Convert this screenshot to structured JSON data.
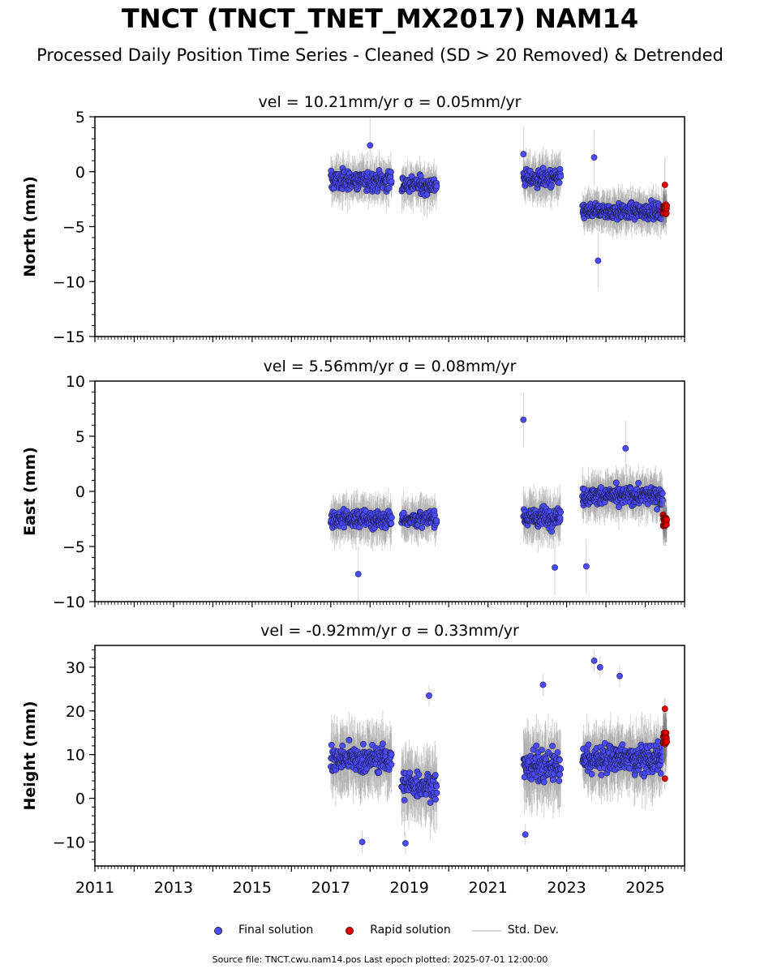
{
  "header": {
    "title": "TNCT (TNCT_TNET_MX2017) NAM14",
    "subtitle": "Processed Daily Position Time Series - Cleaned (SD > 20 Removed) & Detrended"
  },
  "legend": {
    "items": [
      {
        "label": "Final solution",
        "color": "#4b4bff",
        "kind": "dot"
      },
      {
        "label": "Rapid solution",
        "color": "#e00000",
        "kind": "dot"
      },
      {
        "label": "Std. Dev.",
        "color": "#d3d3d3",
        "kind": "line"
      }
    ]
  },
  "footer": {
    "source": "Source file: TNCT.cwu.nam14.pos  Last epoch plotted: 2025-07-01 12:00:00"
  },
  "colors": {
    "final": "#4b4bff",
    "rapid": "#e00000",
    "stddev": "#d3d3d3"
  },
  "chart_data": [
    {
      "type": "scatter",
      "title": "vel = 10.21mm/yr   σ = 0.05mm/yr",
      "ylabel": "North (mm)",
      "xlim": [
        2011,
        2026
      ],
      "ylim": [
        -15,
        5
      ],
      "yticks": [
        5,
        0,
        -5,
        -10,
        -15
      ],
      "xticks": [
        2011,
        2013,
        2015,
        2017,
        2019,
        2021,
        2023,
        2025
      ],
      "show_xticklabels": false,
      "series": [
        {
          "name": "Final solution",
          "segments": [
            {
              "x0": 2017.0,
              "x1": 2018.55,
              "mean": -0.8,
              "spread": 1.6,
              "err": 1.5,
              "n": 190
            },
            {
              "x0": 2018.8,
              "x1": 2019.7,
              "mean": -1.2,
              "spread": 1.4,
              "err": 1.5,
              "n": 100
            },
            {
              "x0": 2021.9,
              "x1": 2022.85,
              "mean": -0.6,
              "spread": 1.4,
              "err": 1.6,
              "n": 120
            },
            {
              "x0": 2023.4,
              "x1": 2025.45,
              "mean": -3.6,
              "spread": 1.2,
              "err": 1.4,
              "n": 280
            }
          ],
          "outliers": [
            [
              2023.8,
              -8.1
            ],
            [
              2023.7,
              1.3
            ],
            [
              2021.9,
              1.6
            ],
            [
              2018.0,
              2.4
            ]
          ]
        },
        {
          "name": "Rapid solution",
          "segments": [
            {
              "x0": 2025.45,
              "x1": 2025.55,
              "mean": -3.4,
              "spread": 1.0,
              "err": 1.4,
              "n": 22
            }
          ],
          "outliers": [
            [
              2025.5,
              -1.2
            ]
          ]
        }
      ]
    },
    {
      "type": "scatter",
      "title": "vel = 5.56mm/yr   σ = 0.08mm/yr",
      "ylabel": "East (mm)",
      "xlim": [
        2011,
        2026
      ],
      "ylim": [
        -10,
        10
      ],
      "yticks": [
        10,
        5,
        0,
        -5,
        -10
      ],
      "xticks": [
        2011,
        2013,
        2015,
        2017,
        2019,
        2021,
        2023,
        2025
      ],
      "show_xticklabels": false,
      "series": [
        {
          "name": "Final solution",
          "segments": [
            {
              "x0": 2017.0,
              "x1": 2018.55,
              "mean": -2.5,
              "spread": 1.4,
              "err": 1.6,
              "n": 190
            },
            {
              "x0": 2018.8,
              "x1": 2019.7,
              "mean": -2.5,
              "spread": 1.2,
              "err": 1.5,
              "n": 100
            },
            {
              "x0": 2021.9,
              "x1": 2022.85,
              "mean": -2.3,
              "spread": 1.6,
              "err": 1.7,
              "n": 120
            },
            {
              "x0": 2023.4,
              "x1": 2025.45,
              "mean": -0.4,
              "spread": 1.4,
              "err": 1.6,
              "n": 280
            }
          ],
          "outliers": [
            [
              2021.9,
              6.5
            ],
            [
              2017.7,
              -7.5
            ],
            [
              2023.5,
              -6.8
            ],
            [
              2022.7,
              -6.9
            ],
            [
              2024.5,
              3.9
            ]
          ]
        },
        {
          "name": "Rapid solution",
          "segments": [
            {
              "x0": 2025.45,
              "x1": 2025.55,
              "mean": -2.6,
              "spread": 0.9,
              "err": 1.4,
              "n": 22
            }
          ],
          "outliers": []
        }
      ]
    },
    {
      "type": "scatter",
      "title": "vel = -0.92mm/yr   σ = 0.33mm/yr",
      "ylabel": "Height (mm)",
      "xlim": [
        2011,
        2026
      ],
      "ylim": [
        -15.5,
        35
      ],
      "yticks": [
        30,
        20,
        10,
        0,
        -10
      ],
      "xticks": [
        2011,
        2013,
        2015,
        2017,
        2019,
        2021,
        2023,
        2025
      ],
      "show_xticklabels": true,
      "series": [
        {
          "name": "Final solution",
          "segments": [
            {
              "x0": 2017.0,
              "x1": 2018.55,
              "mean": 9.0,
              "spread": 5.5,
              "err": 6.0,
              "n": 190
            },
            {
              "x0": 2018.8,
              "x1": 2019.7,
              "mean": 3.0,
              "spread": 5.5,
              "err": 6.5,
              "n": 100
            },
            {
              "x0": 2021.9,
              "x1": 2022.85,
              "mean": 7.5,
              "spread": 6.5,
              "err": 6.5,
              "n": 120
            },
            {
              "x0": 2023.4,
              "x1": 2025.45,
              "mean": 9.0,
              "spread": 5.5,
              "err": 6.0,
              "n": 280
            }
          ],
          "outliers": [
            [
              2023.7,
              31.5
            ],
            [
              2023.85,
              30.0
            ],
            [
              2024.35,
              28.0
            ],
            [
              2019.5,
              23.5
            ],
            [
              2017.8,
              -10.0
            ],
            [
              2018.9,
              -10.3
            ],
            [
              2021.95,
              -8.3
            ],
            [
              2022.4,
              26.0
            ]
          ]
        },
        {
          "name": "Rapid solution",
          "segments": [
            {
              "x0": 2025.45,
              "x1": 2025.55,
              "mean": 13.5,
              "spread": 3.0,
              "err": 5.0,
              "n": 22
            }
          ],
          "outliers": [
            [
              2025.5,
              4.5
            ],
            [
              2025.5,
              20.5
            ]
          ]
        }
      ]
    }
  ]
}
